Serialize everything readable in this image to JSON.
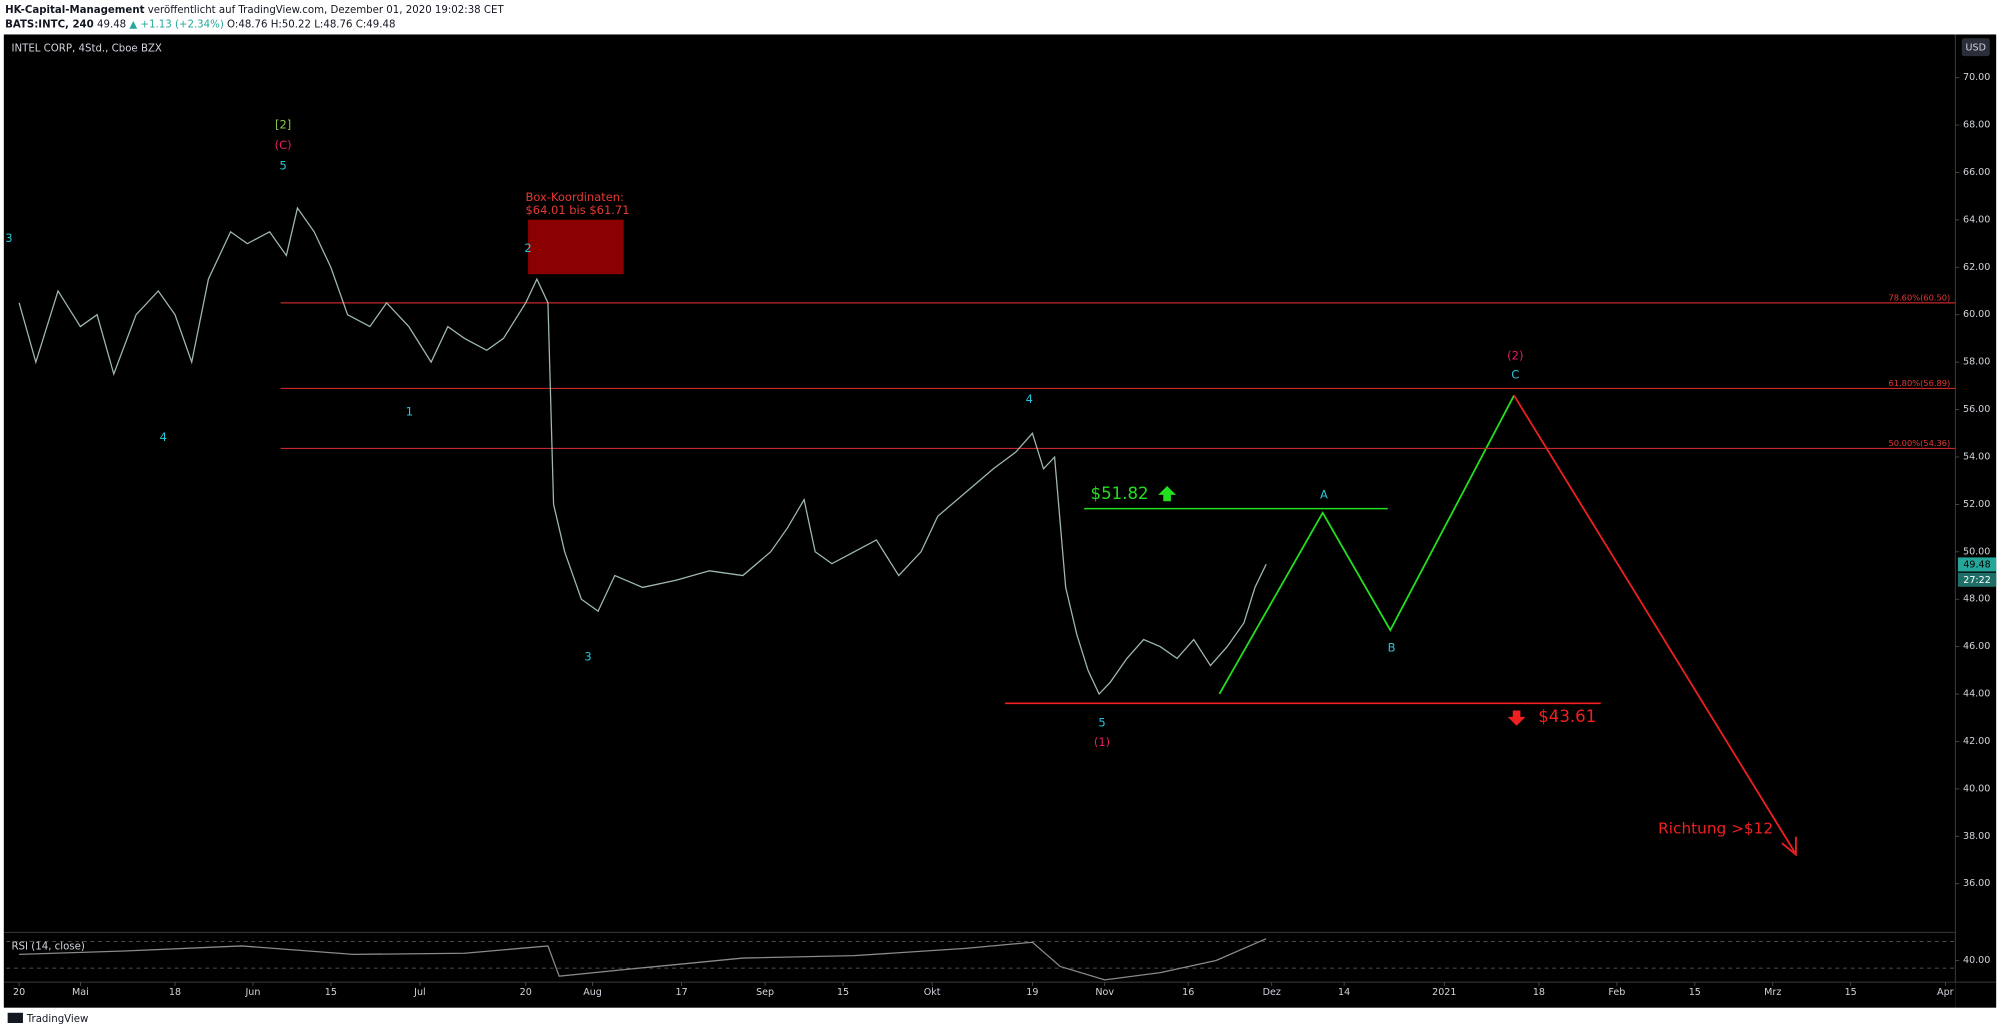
{
  "header": {
    "publisher": "HK-Capital-Management",
    "published": "veröffentlicht auf TradingView.com, Dezember 01, 2020 19:02:38 CET",
    "symbol": "BATS:INTC, 240",
    "last": "49.48",
    "change": "▲ +1.13 (+2.34%)",
    "ohlc": "O:48.76 H:50.22 L:48.76 C:49.48"
  },
  "footer": "TradingView",
  "chart_data": [
    {
      "type": "line",
      "title": "INTEL CORP, 4Std., Cboe BZX",
      "currency": "USD",
      "price_label": "49.48",
      "countdown": "27:22",
      "color": "#9fb8b0",
      "x": [
        0,
        3,
        7,
        11,
        14,
        17,
        21,
        25,
        28,
        31,
        34,
        38,
        41,
        45,
        48,
        50,
        53,
        56,
        59,
        63,
        66,
        70,
        74,
        77,
        80,
        84,
        87,
        91,
        93,
        95,
        96,
        98,
        101,
        104,
        107,
        112,
        118,
        124,
        130,
        135,
        138,
        141,
        143,
        146,
        150,
        154,
        158,
        162,
        165,
        170,
        175,
        179,
        182,
        184,
        186,
        188,
        190,
        192,
        194,
        196,
        199,
        202,
        205,
        208,
        211,
        214,
        217,
        220,
        222,
        224
      ],
      "values": [
        60.5,
        58,
        61,
        59.5,
        60,
        57.5,
        60,
        61,
        60,
        58,
        61.5,
        63.5,
        63,
        63.5,
        62.5,
        64.5,
        63.5,
        62,
        60,
        59.5,
        60.5,
        59.5,
        58,
        59.5,
        59,
        58.5,
        59,
        60.5,
        61.5,
        60.5,
        52,
        50,
        48,
        47.5,
        49,
        48.5,
        48.8,
        49.2,
        49,
        50,
        51,
        52.2,
        50,
        49.5,
        50,
        50.5,
        49,
        50,
        51.5,
        52.5,
        53.5,
        54.2,
        55,
        53.5,
        54,
        48.5,
        46.5,
        45,
        44,
        44.5,
        45.5,
        46.3,
        46,
        45.5,
        46.3,
        45.2,
        46,
        47,
        48.5,
        49.48
      ],
      "xlim": [
        -2.29,
        347.8
      ],
      "ylim": [
        34,
        71.66
      ],
      "xticks": [
        {
          "value": 0,
          "label": "20"
        },
        {
          "value": 11,
          "label": "Mai"
        },
        {
          "value": 28,
          "label": "18"
        },
        {
          "value": 42,
          "label": "Jun"
        },
        {
          "value": 56,
          "label": "15"
        },
        {
          "value": 72,
          "label": "Jul"
        },
        {
          "value": 91,
          "label": "20"
        },
        {
          "value": 103,
          "label": "Aug"
        },
        {
          "value": 119,
          "label": "17"
        },
        {
          "value": 134,
          "label": "Sep"
        },
        {
          "value": 148,
          "label": "15"
        },
        {
          "value": 164,
          "label": "Okt"
        },
        {
          "value": 182,
          "label": "19"
        },
        {
          "value": 195,
          "label": "Nov"
        },
        {
          "value": 210,
          "label": "16"
        },
        {
          "value": 225,
          "label": "Dez"
        },
        {
          "value": 238,
          "label": "14"
        },
        {
          "value": 256,
          "label": "2021"
        },
        {
          "value": 273,
          "label": "18"
        },
        {
          "value": 287,
          "label": "Feb"
        },
        {
          "value": 301,
          "label": "15"
        },
        {
          "value": 315,
          "label": "Mrz"
        },
        {
          "value": 329,
          "label": "15"
        },
        {
          "value": 346,
          "label": "Apr"
        }
      ],
      "yticks": [
        {
          "value": 36,
          "label": "36.00"
        },
        {
          "value": 38,
          "label": "38.00"
        },
        {
          "value": 40,
          "label": "40.00"
        },
        {
          "value": 42,
          "label": "42.00"
        },
        {
          "value": 44,
          "label": "44.00"
        },
        {
          "value": 46,
          "label": "46.00"
        },
        {
          "value": 48,
          "label": "48.00"
        },
        {
          "value": 50,
          "label": "50.00"
        },
        {
          "value": 52,
          "label": "52.00"
        },
        {
          "value": 54,
          "label": "54.00"
        },
        {
          "value": 56,
          "label": "56.00"
        },
        {
          "value": 58,
          "label": "58.00"
        },
        {
          "value": 60,
          "label": "60.00"
        },
        {
          "value": 62,
          "label": "62.00"
        },
        {
          "value": 64,
          "label": "64.00"
        },
        {
          "value": 66,
          "label": "66.00"
        },
        {
          "value": 68,
          "label": "68.00"
        },
        {
          "value": 70,
          "label": "70.00"
        }
      ],
      "fib_levels": [
        {
          "value": 60.5,
          "label": "78.60%(60.50)"
        },
        {
          "value": 56.89,
          "label": "61.80%(56.89)"
        },
        {
          "value": 54.36,
          "label": "50.00%(54.36)"
        }
      ],
      "targets": [
        {
          "value": 51.82,
          "label": "$51.82",
          "color": "#22e01e"
        },
        {
          "value": 43.61,
          "label": "$43.61",
          "color": "#f02020"
        }
      ],
      "box": {
        "title": "Box-Koordinaten:",
        "text": "$64.01 bis $61.71",
        "range": [
          64.01,
          61.71
        ]
      },
      "direction_note": "Richtung >$12",
      "wave_labels": [
        {
          "text": "3",
          "color": "#26c6da"
        },
        {
          "text": "4",
          "color": "#26c6da"
        },
        {
          "text": "[2]",
          "color": "#8bc34a"
        },
        {
          "text": "(C)",
          "color": "#e91e63"
        },
        {
          "text": "5",
          "color": "#26c6da"
        },
        {
          "text": "2",
          "color": "#26c6da"
        },
        {
          "text": "1",
          "color": "#26c6da"
        },
        {
          "text": "3",
          "color": "#26c6da"
        },
        {
          "text": "4",
          "color": "#26c6da"
        },
        {
          "text": "5",
          "color": "#26c6da"
        },
        {
          "text": "(1)",
          "color": "#e91e63"
        },
        {
          "text": "A",
          "color": "#26c6da"
        },
        {
          "text": "B",
          "color": "#26c6da"
        },
        {
          "text": "C",
          "color": "#26c6da"
        },
        {
          "text": "(2)",
          "color": "#e91e63"
        }
      ]
    },
    {
      "type": "line",
      "title": "RSI (14, close)",
      "color": "#8a8a8a",
      "x": [
        0,
        20,
        40,
        60,
        80,
        95,
        97,
        110,
        130,
        150,
        170,
        182,
        187,
        195,
        205,
        215,
        224
      ],
      "values": [
        45,
        48,
        52,
        45,
        46,
        52,
        27,
        33,
        42,
        44,
        50,
        55,
        35,
        24,
        30,
        40,
        58
      ],
      "xlim": [
        -2.29,
        347.8
      ],
      "ylim": [
        20,
        61
      ],
      "yticks": [
        {
          "value": 40,
          "label": "40.00"
        }
      ]
    }
  ]
}
